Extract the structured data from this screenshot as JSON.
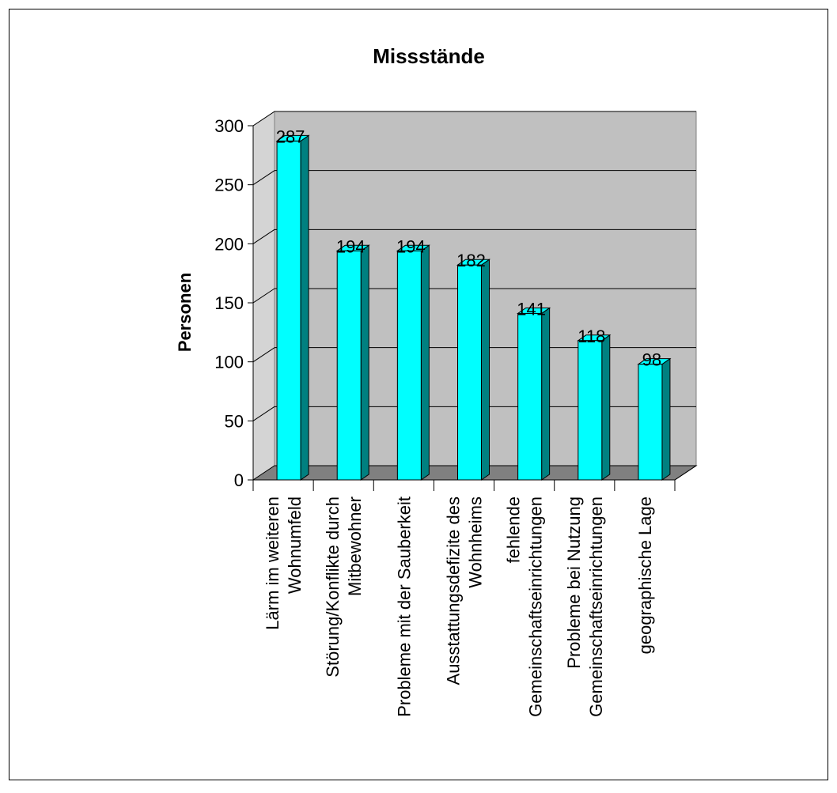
{
  "chart_data": {
    "type": "bar",
    "title": "Missstände",
    "xlabel": "",
    "ylabel": "Personen",
    "ylim": [
      0,
      300
    ],
    "yticks": [
      0,
      50,
      100,
      150,
      200,
      250,
      300
    ],
    "grid": true,
    "legend": "none",
    "categories": [
      [
        "Lärm im weiteren",
        "Wohnumfeld"
      ],
      [
        "Störung/Konflikte durch",
        "Mitbewohner"
      ],
      [
        "Probleme mit der Sauberkeit"
      ],
      [
        "Ausstattungsdefizite des",
        "Wohnheims"
      ],
      [
        "fehlende",
        "Gemeinschaftseinrichtungen"
      ],
      [
        "Probleme bei Nutzung",
        "Gemeinschaftseinrichtungen"
      ],
      [
        "geographische Lage"
      ]
    ],
    "values": [
      287,
      194,
      194,
      182,
      141,
      118,
      98
    ],
    "colors": {
      "bar_front": "#00ffff",
      "bar_side": "#008080",
      "bar_top": "#00ffff",
      "back_wall": "#c0c0c0",
      "floor": "#808080",
      "gridline": "#000000"
    }
  }
}
